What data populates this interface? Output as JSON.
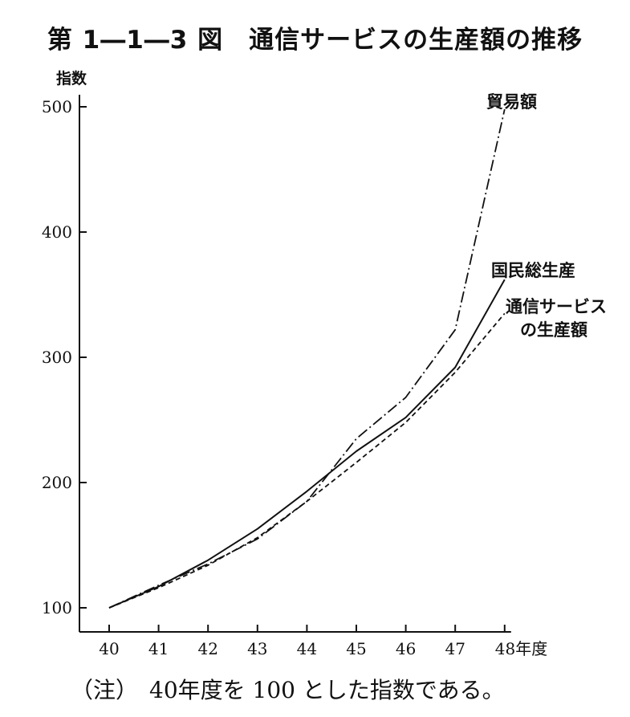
{
  "title": "第 1―1―3 図　通信サービスの生産額の推移",
  "note": "（注）　40年度を 100 とした指数である。",
  "chart_data": {
    "type": "line",
    "ylabel": "指数",
    "xlabel": "年度",
    "x": [
      40,
      41,
      42,
      43,
      44,
      45,
      46,
      47,
      48
    ],
    "x_tick_labels": [
      "40",
      "41",
      "42",
      "43",
      "44",
      "45",
      "46",
      "47",
      "48"
    ],
    "x_last_label": "48年度",
    "ylim": [
      100,
      500
    ],
    "y_ticks": [
      100,
      200,
      300,
      400,
      500
    ],
    "grid": false,
    "series": [
      {
        "name": "貿易額",
        "label_lines": [
          "貿易額"
        ],
        "style": "dashdot",
        "values": [
          100,
          118,
          135,
          155,
          185,
          235,
          268,
          322,
          498
        ]
      },
      {
        "name": "国民総生産",
        "label_lines": [
          "国民総生産"
        ],
        "style": "solid",
        "values": [
          100,
          117,
          138,
          163,
          193,
          225,
          252,
          292,
          362
        ]
      },
      {
        "name": "通信サービスの生産額",
        "label_lines": [
          "通信サービス",
          "の生産額"
        ],
        "style": "dashed",
        "values": [
          100,
          116,
          134,
          156,
          185,
          216,
          248,
          288,
          335
        ]
      }
    ]
  }
}
